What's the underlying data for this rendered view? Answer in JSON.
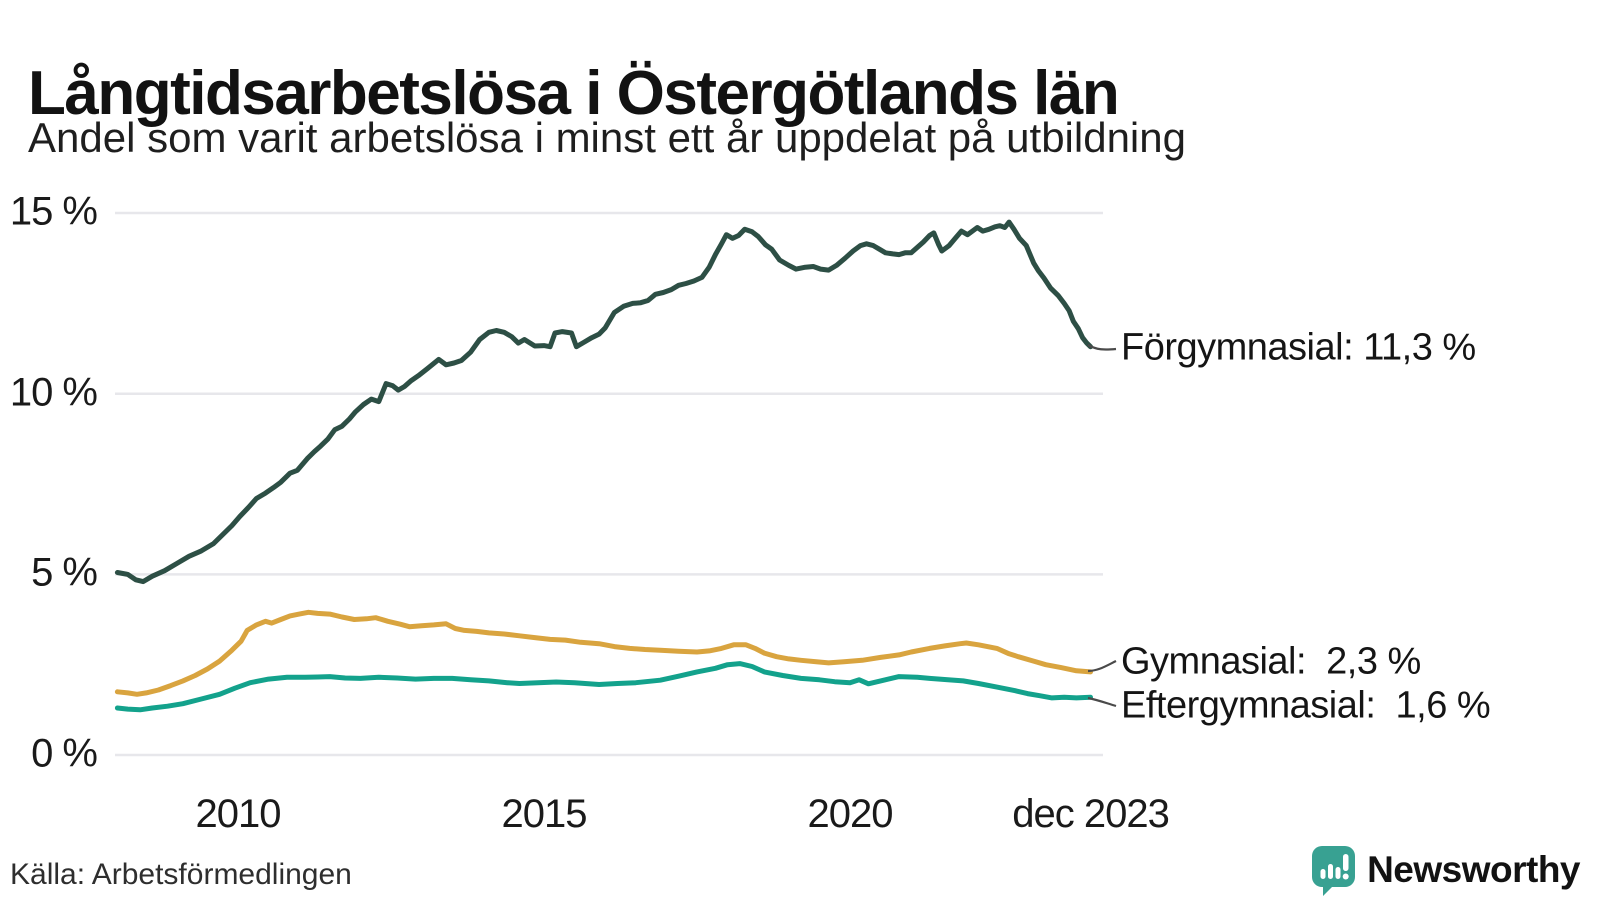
{
  "header": {
    "title": "Långtidsarbetslösa i Östergötlands län",
    "subtitle": "Andel som varit arbetslösa i minst ett år uppdelat på utbildning"
  },
  "footer": {
    "source": "Källa: Arbetsförmedlingen",
    "brand": "Newsworthy"
  },
  "colors": {
    "forgymnasial": "#2d4f45",
    "gymnasial": "#d9a43f",
    "eftergymnasial": "#13a28c",
    "gridline": "#e7e7eb",
    "connector": "#4a4a4a",
    "brand_teal": "#38a192",
    "text": "#121212"
  },
  "chart_data": {
    "type": "line",
    "title": "Långtidsarbetslösa i Östergötlands län",
    "subtitle": "Andel som varit arbetslösa i minst ett år uppdelat på utbildning",
    "xlabel": "",
    "ylabel": "",
    "xlim": [
      2008,
      2024.1
    ],
    "ylim": [
      0,
      15
    ],
    "grid": "horizontal",
    "legend_position": "right-end-labels",
    "x_ticks": [
      {
        "label": "2010",
        "year": 2010
      },
      {
        "label": "2015",
        "year": 2015
      },
      {
        "label": "2020",
        "year": 2020
      },
      {
        "label": "dec 2023",
        "year": 2023.93
      }
    ],
    "y_ticks": [
      {
        "label": "15 %",
        "value": 15
      },
      {
        "label": "10 %",
        "value": 10
      },
      {
        "label": "5 %",
        "value": 5
      },
      {
        "label": "0 %",
        "value": 0
      }
    ],
    "series": [
      {
        "key": "forgymnasial",
        "name": "Förgymnasial",
        "end_label": "Förgymnasial: 11,3 %",
        "end_value": "11,3 %",
        "color": "#2d4f45",
        "points": [
          [
            2008.03,
            5.05
          ],
          [
            2008.2,
            5.0
          ],
          [
            2008.33,
            4.85
          ],
          [
            2008.45,
            4.8
          ],
          [
            2008.6,
            4.95
          ],
          [
            2008.8,
            5.1
          ],
          [
            2009.0,
            5.3
          ],
          [
            2009.2,
            5.5
          ],
          [
            2009.4,
            5.65
          ],
          [
            2009.6,
            5.85
          ],
          [
            2009.75,
            6.1
          ],
          [
            2009.9,
            6.35
          ],
          [
            2010.03,
            6.6
          ],
          [
            2010.17,
            6.85
          ],
          [
            2010.3,
            7.1
          ],
          [
            2010.45,
            7.25
          ],
          [
            2010.58,
            7.4
          ],
          [
            2010.7,
            7.55
          ],
          [
            2010.85,
            7.8
          ],
          [
            2010.97,
            7.88
          ],
          [
            2011.13,
            8.2
          ],
          [
            2011.25,
            8.4
          ],
          [
            2011.35,
            8.55
          ],
          [
            2011.47,
            8.75
          ],
          [
            2011.58,
            9.0
          ],
          [
            2011.7,
            9.1
          ],
          [
            2011.82,
            9.3
          ],
          [
            2011.92,
            9.5
          ],
          [
            2012.05,
            9.7
          ],
          [
            2012.18,
            9.85
          ],
          [
            2012.3,
            9.78
          ],
          [
            2012.42,
            10.28
          ],
          [
            2012.53,
            10.22
          ],
          [
            2012.62,
            10.1
          ],
          [
            2012.72,
            10.2
          ],
          [
            2012.82,
            10.35
          ],
          [
            2012.95,
            10.5
          ],
          [
            2013.1,
            10.7
          ],
          [
            2013.28,
            10.95
          ],
          [
            2013.4,
            10.8
          ],
          [
            2013.53,
            10.85
          ],
          [
            2013.65,
            10.92
          ],
          [
            2013.8,
            11.15
          ],
          [
            2013.95,
            11.5
          ],
          [
            2014.1,
            11.7
          ],
          [
            2014.22,
            11.75
          ],
          [
            2014.35,
            11.7
          ],
          [
            2014.47,
            11.58
          ],
          [
            2014.58,
            11.4
          ],
          [
            2014.68,
            11.5
          ],
          [
            2014.85,
            11.32
          ],
          [
            2015.0,
            11.33
          ],
          [
            2015.1,
            11.3
          ],
          [
            2015.18,
            11.68
          ],
          [
            2015.3,
            11.72
          ],
          [
            2015.45,
            11.68
          ],
          [
            2015.53,
            11.3
          ],
          [
            2015.65,
            11.42
          ],
          [
            2015.78,
            11.55
          ],
          [
            2015.9,
            11.65
          ],
          [
            2016.0,
            11.82
          ],
          [
            2016.15,
            12.25
          ],
          [
            2016.3,
            12.42
          ],
          [
            2016.45,
            12.5
          ],
          [
            2016.58,
            12.52
          ],
          [
            2016.7,
            12.58
          ],
          [
            2016.82,
            12.75
          ],
          [
            2016.95,
            12.8
          ],
          [
            2017.08,
            12.88
          ],
          [
            2017.2,
            13.0
          ],
          [
            2017.32,
            13.05
          ],
          [
            2017.45,
            13.12
          ],
          [
            2017.58,
            13.22
          ],
          [
            2017.7,
            13.5
          ],
          [
            2017.8,
            13.85
          ],
          [
            2017.9,
            14.15
          ],
          [
            2017.98,
            14.4
          ],
          [
            2018.08,
            14.3
          ],
          [
            2018.18,
            14.38
          ],
          [
            2018.28,
            14.55
          ],
          [
            2018.4,
            14.48
          ],
          [
            2018.5,
            14.35
          ],
          [
            2018.62,
            14.12
          ],
          [
            2018.72,
            14.0
          ],
          [
            2018.85,
            13.7
          ],
          [
            2019.0,
            13.55
          ],
          [
            2019.12,
            13.45
          ],
          [
            2019.27,
            13.5
          ],
          [
            2019.4,
            13.52
          ],
          [
            2019.52,
            13.45
          ],
          [
            2019.65,
            13.42
          ],
          [
            2019.78,
            13.55
          ],
          [
            2019.92,
            13.75
          ],
          [
            2020.05,
            13.95
          ],
          [
            2020.17,
            14.1
          ],
          [
            2020.27,
            14.15
          ],
          [
            2020.38,
            14.1
          ],
          [
            2020.48,
            14.0
          ],
          [
            2020.58,
            13.9
          ],
          [
            2020.7,
            13.87
          ],
          [
            2020.8,
            13.85
          ],
          [
            2020.9,
            13.9
          ],
          [
            2021.0,
            13.9
          ],
          [
            2021.1,
            14.05
          ],
          [
            2021.2,
            14.2
          ],
          [
            2021.3,
            14.38
          ],
          [
            2021.37,
            14.45
          ],
          [
            2021.45,
            14.12
          ],
          [
            2021.5,
            13.95
          ],
          [
            2021.62,
            14.1
          ],
          [
            2021.72,
            14.3
          ],
          [
            2021.82,
            14.5
          ],
          [
            2021.92,
            14.4
          ],
          [
            2022.0,
            14.5
          ],
          [
            2022.08,
            14.6
          ],
          [
            2022.17,
            14.5
          ],
          [
            2022.27,
            14.55
          ],
          [
            2022.37,
            14.62
          ],
          [
            2022.45,
            14.65
          ],
          [
            2022.53,
            14.6
          ],
          [
            2022.6,
            14.75
          ],
          [
            2022.68,
            14.55
          ],
          [
            2022.77,
            14.3
          ],
          [
            2022.88,
            14.1
          ],
          [
            2023.0,
            13.62
          ],
          [
            2023.08,
            13.4
          ],
          [
            2023.17,
            13.2
          ],
          [
            2023.28,
            12.92
          ],
          [
            2023.4,
            12.72
          ],
          [
            2023.5,
            12.5
          ],
          [
            2023.58,
            12.3
          ],
          [
            2023.65,
            12.0
          ],
          [
            2023.73,
            11.8
          ],
          [
            2023.8,
            11.55
          ],
          [
            2023.87,
            11.4
          ],
          [
            2023.93,
            11.3
          ]
        ]
      },
      {
        "key": "gymnasial",
        "name": "Gymnasial",
        "end_label": "Gymnasial:  2,3 %",
        "end_value": "2,3 %",
        "color": "#d9a43f",
        "points": [
          [
            2008.03,
            1.75
          ],
          [
            2008.2,
            1.72
          ],
          [
            2008.35,
            1.68
          ],
          [
            2008.5,
            1.72
          ],
          [
            2008.7,
            1.8
          ],
          [
            2008.9,
            1.92
          ],
          [
            2009.1,
            2.05
          ],
          [
            2009.3,
            2.2
          ],
          [
            2009.5,
            2.38
          ],
          [
            2009.7,
            2.6
          ],
          [
            2009.9,
            2.9
          ],
          [
            2010.05,
            3.15
          ],
          [
            2010.15,
            3.45
          ],
          [
            2010.3,
            3.6
          ],
          [
            2010.45,
            3.7
          ],
          [
            2010.55,
            3.65
          ],
          [
            2010.7,
            3.75
          ],
          [
            2010.85,
            3.85
          ],
          [
            2011.0,
            3.9
          ],
          [
            2011.15,
            3.95
          ],
          [
            2011.3,
            3.92
          ],
          [
            2011.5,
            3.9
          ],
          [
            2011.7,
            3.82
          ],
          [
            2011.9,
            3.75
          ],
          [
            2012.1,
            3.77
          ],
          [
            2012.25,
            3.8
          ],
          [
            2012.45,
            3.7
          ],
          [
            2012.65,
            3.62
          ],
          [
            2012.8,
            3.55
          ],
          [
            2013.0,
            3.58
          ],
          [
            2013.2,
            3.6
          ],
          [
            2013.4,
            3.63
          ],
          [
            2013.55,
            3.5
          ],
          [
            2013.7,
            3.45
          ],
          [
            2013.9,
            3.42
          ],
          [
            2014.1,
            3.38
          ],
          [
            2014.35,
            3.35
          ],
          [
            2014.6,
            3.3
          ],
          [
            2014.85,
            3.25
          ],
          [
            2015.1,
            3.2
          ],
          [
            2015.35,
            3.18
          ],
          [
            2015.6,
            3.12
          ],
          [
            2015.9,
            3.08
          ],
          [
            2016.15,
            3.0
          ],
          [
            2016.4,
            2.95
          ],
          [
            2016.65,
            2.92
          ],
          [
            2016.9,
            2.9
          ],
          [
            2017.2,
            2.87
          ],
          [
            2017.5,
            2.85
          ],
          [
            2017.7,
            2.88
          ],
          [
            2017.9,
            2.95
          ],
          [
            2018.1,
            3.05
          ],
          [
            2018.3,
            3.05
          ],
          [
            2018.45,
            2.95
          ],
          [
            2018.6,
            2.82
          ],
          [
            2018.8,
            2.72
          ],
          [
            2019.0,
            2.66
          ],
          [
            2019.2,
            2.62
          ],
          [
            2019.45,
            2.58
          ],
          [
            2019.65,
            2.55
          ],
          [
            2019.9,
            2.58
          ],
          [
            2020.2,
            2.62
          ],
          [
            2020.5,
            2.7
          ],
          [
            2020.8,
            2.77
          ],
          [
            2021.0,
            2.85
          ],
          [
            2021.3,
            2.95
          ],
          [
            2021.55,
            3.02
          ],
          [
            2021.8,
            3.08
          ],
          [
            2021.9,
            3.1
          ],
          [
            2022.1,
            3.05
          ],
          [
            2022.4,
            2.95
          ],
          [
            2022.6,
            2.8
          ],
          [
            2022.75,
            2.72
          ],
          [
            2023.0,
            2.6
          ],
          [
            2023.2,
            2.5
          ],
          [
            2023.45,
            2.42
          ],
          [
            2023.7,
            2.33
          ],
          [
            2023.93,
            2.3
          ]
        ]
      },
      {
        "key": "eftergymnasial",
        "name": "Eftergymnasial",
        "end_label": "Eftergymnasial:  1,6 %",
        "end_value": "1,6 %",
        "color": "#13a28c",
        "points": [
          [
            2008.03,
            1.3
          ],
          [
            2008.2,
            1.27
          ],
          [
            2008.4,
            1.25
          ],
          [
            2008.6,
            1.3
          ],
          [
            2008.85,
            1.35
          ],
          [
            2009.1,
            1.42
          ],
          [
            2009.4,
            1.55
          ],
          [
            2009.7,
            1.68
          ],
          [
            2009.95,
            1.85
          ],
          [
            2010.2,
            2.0
          ],
          [
            2010.5,
            2.1
          ],
          [
            2010.8,
            2.15
          ],
          [
            2011.1,
            2.15
          ],
          [
            2011.3,
            2.16
          ],
          [
            2011.5,
            2.17
          ],
          [
            2011.75,
            2.13
          ],
          [
            2012.0,
            2.12
          ],
          [
            2012.3,
            2.15
          ],
          [
            2012.6,
            2.13
          ],
          [
            2012.9,
            2.1
          ],
          [
            2013.2,
            2.12
          ],
          [
            2013.5,
            2.12
          ],
          [
            2013.8,
            2.08
          ],
          [
            2014.1,
            2.05
          ],
          [
            2014.4,
            2.0
          ],
          [
            2014.6,
            1.98
          ],
          [
            2014.9,
            2.0
          ],
          [
            2015.2,
            2.02
          ],
          [
            2015.5,
            2.0
          ],
          [
            2015.9,
            1.95
          ],
          [
            2016.2,
            1.98
          ],
          [
            2016.5,
            2.0
          ],
          [
            2016.9,
            2.07
          ],
          [
            2017.2,
            2.18
          ],
          [
            2017.5,
            2.3
          ],
          [
            2017.8,
            2.4
          ],
          [
            2018.0,
            2.5
          ],
          [
            2018.2,
            2.53
          ],
          [
            2018.4,
            2.45
          ],
          [
            2018.6,
            2.3
          ],
          [
            2018.9,
            2.2
          ],
          [
            2019.2,
            2.12
          ],
          [
            2019.5,
            2.08
          ],
          [
            2019.75,
            2.03
          ],
          [
            2020.0,
            2.0
          ],
          [
            2020.15,
            2.08
          ],
          [
            2020.3,
            1.97
          ],
          [
            2020.5,
            2.05
          ],
          [
            2020.8,
            2.17
          ],
          [
            2021.1,
            2.15
          ],
          [
            2021.3,
            2.12
          ],
          [
            2021.6,
            2.08
          ],
          [
            2021.85,
            2.05
          ],
          [
            2022.1,
            1.98
          ],
          [
            2022.4,
            1.88
          ],
          [
            2022.7,
            1.78
          ],
          [
            2022.9,
            1.7
          ],
          [
            2023.1,
            1.64
          ],
          [
            2023.3,
            1.58
          ],
          [
            2023.5,
            1.6
          ],
          [
            2023.7,
            1.58
          ],
          [
            2023.93,
            1.6
          ]
        ]
      }
    ]
  }
}
